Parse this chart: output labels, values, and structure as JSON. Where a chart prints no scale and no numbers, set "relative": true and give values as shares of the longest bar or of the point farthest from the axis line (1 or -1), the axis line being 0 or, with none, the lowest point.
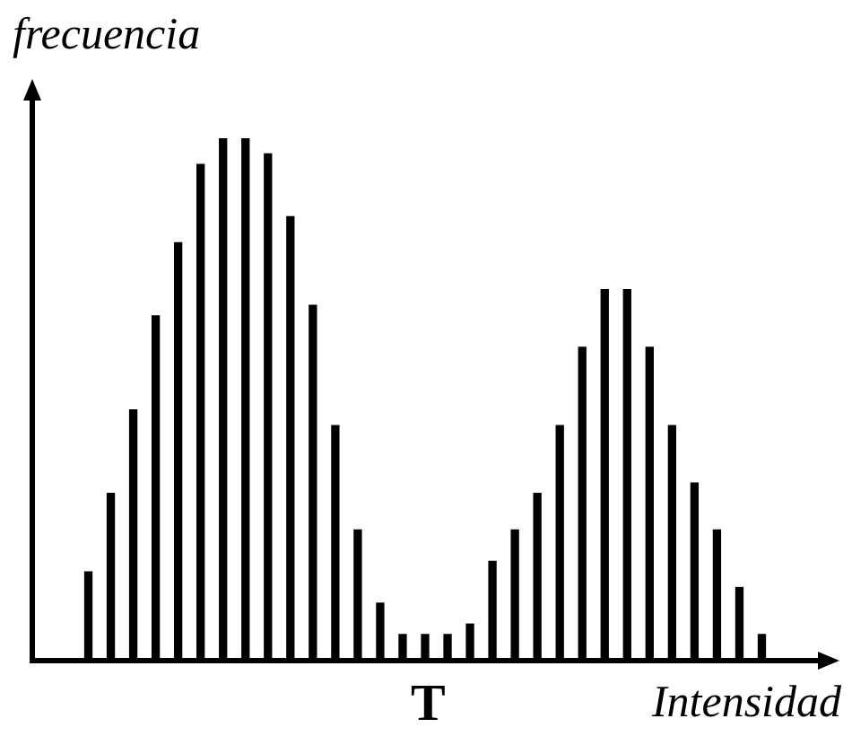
{
  "chart_data": {
    "type": "bar",
    "relative": true,
    "xlabel": "Intensidad",
    "ylabel": "frecuencia",
    "annotations": [
      "T"
    ],
    "color": "#000000",
    "categories": [
      null,
      null,
      null,
      null,
      null,
      null,
      null,
      null,
      null,
      null,
      null,
      null,
      null,
      null,
      null,
      null,
      null,
      null,
      null,
      null,
      null,
      null,
      null,
      null,
      null,
      null,
      null,
      null,
      null,
      null,
      null
    ],
    "values": [
      0.17,
      0.32,
      0.48,
      0.66,
      0.8,
      0.95,
      1,
      1,
      0.97,
      0.85,
      0.68,
      0.45,
      0.25,
      0.11,
      0.05,
      0.05,
      0.05,
      0.07,
      0.19,
      0.25,
      0.32,
      0.45,
      0.6,
      0.71,
      0.71,
      0.6,
      0.45,
      0.34,
      0.25,
      0.14,
      0.05
    ]
  }
}
